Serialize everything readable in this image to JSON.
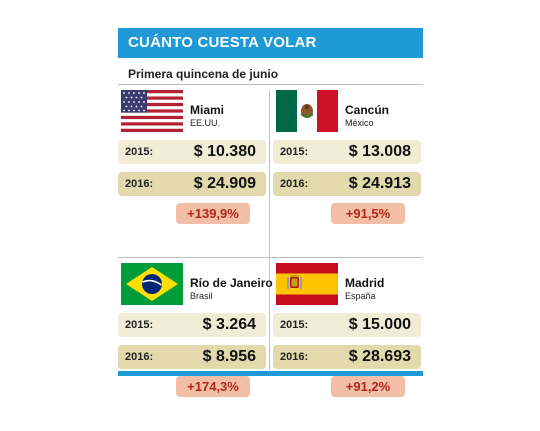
{
  "header": {
    "title": "CUÁNTO CUESTA VOLAR"
  },
  "subtitle": "Primera quincena de junio",
  "colors": {
    "accent": "#1f9ad6",
    "row_2015": "#f0ecd6",
    "row_2016": "#e3d9ac",
    "badge": "#f2bfa6",
    "badge_text": "#b3261e"
  },
  "destinations": [
    {
      "city": "Miami",
      "country": "EE.UU.",
      "flag_icon": "usa-flag-icon",
      "label_2015": "2015:",
      "price_2015": "$ 10.380",
      "label_2016": "2016:",
      "price_2016": "$ 24.909",
      "change": "+139,9%"
    },
    {
      "city": "Cancún",
      "country": "México",
      "flag_icon": "mexico-flag-icon",
      "label_2015": "2015:",
      "price_2015": "$ 13.008",
      "label_2016": "2016:",
      "price_2016": "$ 24.913",
      "change": "+91,5%"
    },
    {
      "city": "Río de Janeiro",
      "country": "Brasil",
      "flag_icon": "brazil-flag-icon",
      "label_2015": "2015:",
      "price_2015": "$ 3.264",
      "label_2016": "2016:",
      "price_2016": "$ 8.956",
      "change": "+174,3%"
    },
    {
      "city": "Madrid",
      "country": "España",
      "flag_icon": "spain-flag-icon",
      "label_2015": "2015:",
      "price_2015": "$ 15.000",
      "label_2016": "2016:",
      "price_2016": "$ 28.693",
      "change": "+91,2%"
    }
  ]
}
